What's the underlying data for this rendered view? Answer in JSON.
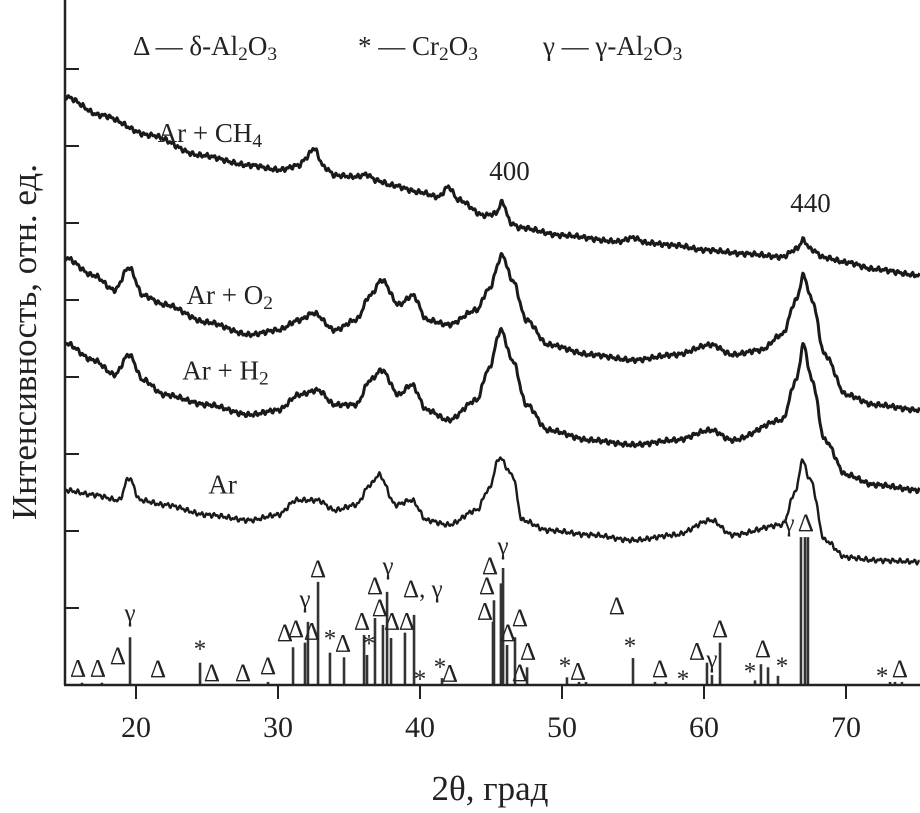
{
  "chart_data": {
    "type": "line",
    "title": "",
    "xlabel": "2θ, град",
    "ylabel": "Интенсивность, отн. ед.",
    "xlim": [
      15.0,
      75.2
    ],
    "ylim": [
      0,
      8.9
    ],
    "xticks": [
      20,
      30,
      40,
      50,
      60,
      70
    ],
    "yticks": [
      1,
      2,
      3,
      4,
      5,
      6,
      7,
      8
    ],
    "ytick_labels_shown": false,
    "grid": false,
    "line_color": "#1a1a1a",
    "legend": {
      "placement": "top",
      "items": [
        "Δ — δ-Al2O3",
        "* — Cr2O3",
        "γ — γ-Al2O3"
      ]
    },
    "series": [
      {
        "name": "Ar + CH4",
        "label_at": [
          25.2,
          7.05
        ],
        "points": [
          [
            15.0,
            7.64
          ],
          [
            17.5,
            7.4
          ],
          [
            21.0,
            7.14
          ],
          [
            24.5,
            6.88
          ],
          [
            28.0,
            6.75
          ],
          [
            30.1,
            6.69
          ],
          [
            31.5,
            6.75
          ],
          [
            32.0,
            6.85
          ],
          [
            32.5,
            6.97
          ],
          [
            33.3,
            6.72
          ],
          [
            34.0,
            6.62
          ],
          [
            35.5,
            6.6
          ],
          [
            36.2,
            6.63
          ],
          [
            37.0,
            6.55
          ],
          [
            38.0,
            6.49
          ],
          [
            40.0,
            6.4
          ],
          [
            41.3,
            6.34
          ],
          [
            42.0,
            6.47
          ],
          [
            42.7,
            6.3
          ],
          [
            44.5,
            6.1
          ],
          [
            45.3,
            6.12
          ],
          [
            45.8,
            6.27
          ],
          [
            46.4,
            6.0
          ],
          [
            47.0,
            5.94
          ],
          [
            50.0,
            5.84
          ],
          [
            54.0,
            5.76
          ],
          [
            55.0,
            5.81
          ],
          [
            56.0,
            5.74
          ],
          [
            58.0,
            5.71
          ],
          [
            60.0,
            5.65
          ],
          [
            63.0,
            5.6
          ],
          [
            65.5,
            5.56
          ],
          [
            66.5,
            5.66
          ],
          [
            67.0,
            5.78
          ],
          [
            67.5,
            5.66
          ],
          [
            68.5,
            5.55
          ],
          [
            70.0,
            5.49
          ],
          [
            72.0,
            5.4
          ],
          [
            75.2,
            5.32
          ]
        ]
      },
      {
        "name": "Ar + O2",
        "label_at": [
          26.6,
          4.95
        ],
        "points": [
          [
            15.0,
            5.55
          ],
          [
            17.0,
            5.32
          ],
          [
            18.5,
            5.13
          ],
          [
            19.5,
            5.42
          ],
          [
            20.5,
            5.06
          ],
          [
            22.0,
            4.94
          ],
          [
            25.0,
            4.71
          ],
          [
            28.0,
            4.55
          ],
          [
            30.0,
            4.61
          ],
          [
            31.5,
            4.74
          ],
          [
            32.5,
            4.83
          ],
          [
            34.0,
            4.61
          ],
          [
            35.5,
            4.74
          ],
          [
            36.5,
            5.06
          ],
          [
            37.3,
            5.26
          ],
          [
            38.5,
            4.94
          ],
          [
            39.5,
            5.06
          ],
          [
            40.5,
            4.74
          ],
          [
            42.0,
            4.68
          ],
          [
            44.0,
            4.87
          ],
          [
            44.8,
            5.13
          ],
          [
            45.8,
            5.58
          ],
          [
            46.5,
            5.26
          ],
          [
            47.5,
            4.74
          ],
          [
            49.0,
            4.42
          ],
          [
            52.0,
            4.29
          ],
          [
            55.0,
            4.22
          ],
          [
            58.0,
            4.29
          ],
          [
            60.5,
            4.42
          ],
          [
            62.0,
            4.29
          ],
          [
            64.0,
            4.35
          ],
          [
            65.5,
            4.55
          ],
          [
            66.5,
            5.0
          ],
          [
            67.0,
            5.32
          ],
          [
            67.6,
            5.0
          ],
          [
            68.5,
            4.29
          ],
          [
            70.0,
            3.77
          ],
          [
            72.0,
            3.64
          ],
          [
            75.2,
            3.57
          ]
        ]
      },
      {
        "name": "Ar + H2",
        "label_at": [
          26.3,
          3.97
        ],
        "points": [
          [
            15.0,
            4.44
          ],
          [
            17.0,
            4.22
          ],
          [
            18.5,
            4.03
          ],
          [
            19.5,
            4.29
          ],
          [
            20.5,
            3.96
          ],
          [
            22.0,
            3.77
          ],
          [
            25.0,
            3.64
          ],
          [
            28.0,
            3.51
          ],
          [
            30.0,
            3.57
          ],
          [
            31.5,
            3.77
          ],
          [
            32.8,
            3.83
          ],
          [
            34.0,
            3.64
          ],
          [
            35.5,
            3.64
          ],
          [
            36.5,
            3.96
          ],
          [
            37.3,
            4.09
          ],
          [
            38.5,
            3.77
          ],
          [
            39.4,
            3.9
          ],
          [
            40.5,
            3.57
          ],
          [
            42.0,
            3.44
          ],
          [
            44.0,
            3.7
          ],
          [
            44.8,
            4.09
          ],
          [
            45.7,
            4.61
          ],
          [
            46.5,
            4.22
          ],
          [
            47.5,
            3.64
          ],
          [
            49.0,
            3.31
          ],
          [
            52.0,
            3.18
          ],
          [
            55.0,
            3.12
          ],
          [
            58.0,
            3.18
          ],
          [
            60.5,
            3.31
          ],
          [
            62.0,
            3.18
          ],
          [
            65.5,
            3.44
          ],
          [
            66.5,
            3.96
          ],
          [
            67.0,
            4.42
          ],
          [
            67.6,
            3.96
          ],
          [
            68.5,
            3.18
          ],
          [
            70.0,
            2.73
          ],
          [
            72.0,
            2.6
          ],
          [
            75.2,
            2.53
          ]
        ]
      },
      {
        "name": "Ar",
        "label_at": [
          26.1,
          2.49
        ],
        "points": [
          [
            15.0,
            2.53
          ],
          [
            17.0,
            2.47
          ],
          [
            18.8,
            2.4
          ],
          [
            19.5,
            2.69
          ],
          [
            20.3,
            2.4
          ],
          [
            22.0,
            2.34
          ],
          [
            25.0,
            2.21
          ],
          [
            28.0,
            2.14
          ],
          [
            30.0,
            2.21
          ],
          [
            31.3,
            2.4
          ],
          [
            32.8,
            2.4
          ],
          [
            34.0,
            2.27
          ],
          [
            35.5,
            2.34
          ],
          [
            36.5,
            2.6
          ],
          [
            37.1,
            2.73
          ],
          [
            38.3,
            2.34
          ],
          [
            39.4,
            2.4
          ],
          [
            40.5,
            2.14
          ],
          [
            42.0,
            2.08
          ],
          [
            44.0,
            2.27
          ],
          [
            44.8,
            2.53
          ],
          [
            45.6,
            2.95
          ],
          [
            46.5,
            2.73
          ],
          [
            47.2,
            2.14
          ],
          [
            49.0,
            2.01
          ],
          [
            52.0,
            1.95
          ],
          [
            55.0,
            1.88
          ],
          [
            58.0,
            1.95
          ],
          [
            60.5,
            2.14
          ],
          [
            62.0,
            1.95
          ],
          [
            65.5,
            2.08
          ],
          [
            66.5,
            2.53
          ],
          [
            66.9,
            2.92
          ],
          [
            67.5,
            2.66
          ],
          [
            68.5,
            1.88
          ],
          [
            70.0,
            1.66
          ],
          [
            72.0,
            1.62
          ],
          [
            75.2,
            1.6
          ]
        ]
      }
    ],
    "annotations": [
      {
        "text": "400",
        "at": [
          46.3,
          6.56
        ]
      },
      {
        "text": "440",
        "at": [
          67.5,
          6.14
        ]
      }
    ],
    "reference_lines": [
      [
        16.2,
        0.03
      ],
      [
        17.6,
        0.03
      ],
      [
        19.58,
        0.62
      ],
      [
        24.51,
        0.29
      ],
      [
        29.3,
        0.04
      ],
      [
        31.06,
        0.49
      ],
      [
        31.9,
        0.55
      ],
      [
        32.11,
        0.82
      ],
      [
        32.82,
        1.34
      ],
      [
        33.66,
        0.42
      ],
      [
        34.65,
        0.36
      ],
      [
        36.06,
        0.65
      ],
      [
        36.27,
        0.39
      ],
      [
        36.83,
        0.87
      ],
      [
        37.39,
        0.78
      ],
      [
        37.68,
        1.21
      ],
      [
        37.96,
        0.61
      ],
      [
        38.94,
        0.68
      ],
      [
        39.58,
        0.91
      ],
      [
        41.55,
        0.09
      ],
      [
        45.14,
        0.82
      ],
      [
        45.21,
        1.1
      ],
      [
        45.7,
        1.32
      ],
      [
        45.85,
        1.52
      ],
      [
        46.13,
        0.52
      ],
      [
        46.69,
        0.62
      ],
      [
        47.54,
        0.23
      ],
      [
        50.35,
        0.1
      ],
      [
        51.2,
        0.04
      ],
      [
        51.69,
        0.04
      ],
      [
        55.0,
        0.35
      ],
      [
        56.55,
        0.04
      ],
      [
        57.32,
        0.04
      ],
      [
        60.21,
        0.29
      ],
      [
        60.56,
        0.13
      ],
      [
        61.13,
        0.55
      ],
      [
        63.59,
        0.06
      ],
      [
        64.01,
        0.27
      ],
      [
        64.51,
        0.23
      ],
      [
        65.21,
        0.12
      ],
      [
        66.83,
        1.92
      ],
      [
        67.11,
        1.92
      ],
      [
        67.32,
        1.92
      ],
      [
        73.1,
        0.04
      ],
      [
        73.45,
        0.04
      ],
      [
        73.94,
        0.04
      ]
    ],
    "phase_markers": [
      {
        "s": "Δ",
        "at": [
          15.92,
          0.23
        ]
      },
      {
        "s": "Δ",
        "at": [
          17.32,
          0.23
        ]
      },
      {
        "s": "Δ",
        "at": [
          18.73,
          0.39
        ]
      },
      {
        "s": "γ",
        "at": [
          19.58,
          0.95
        ]
      },
      {
        "s": "Δ",
        "at": [
          21.55,
          0.22
        ]
      },
      {
        "s": "*",
        "at": [
          24.51,
          0.48
        ]
      },
      {
        "s": "Δ",
        "at": [
          25.35,
          0.17
        ]
      },
      {
        "s": "Δ",
        "at": [
          27.54,
          0.17
        ]
      },
      {
        "s": "Δ",
        "at": [
          29.3,
          0.26
        ]
      },
      {
        "s": "Δ",
        "at": [
          30.49,
          0.69
        ]
      },
      {
        "s": "Δ",
        "at": [
          31.27,
          0.74
        ]
      },
      {
        "s": "γ",
        "at": [
          31.9,
          1.13
        ]
      },
      {
        "s": "Δ",
        "at": [
          32.39,
          0.71
        ]
      },
      {
        "s": "Δ",
        "at": [
          32.82,
          1.52
        ]
      },
      {
        "s": "*",
        "at": [
          33.66,
          0.62
        ]
      },
      {
        "s": "Δ",
        "at": [
          34.58,
          0.55
        ]
      },
      {
        "s": "Δ",
        "at": [
          35.92,
          0.84
        ]
      },
      {
        "s": "*",
        "at": [
          36.41,
          0.55
        ]
      },
      {
        "s": "Δ",
        "at": [
          36.83,
          1.3
        ]
      },
      {
        "s": "Δ",
        "at": [
          37.18,
          1.01
        ]
      },
      {
        "s": "γ",
        "at": [
          37.75,
          1.56
        ]
      },
      {
        "s": "Δ",
        "at": [
          38.03,
          0.84
        ]
      },
      {
        "s": "Δ, γ",
        "at": [
          40.2,
          1.26
        ]
      },
      {
        "s": "Δ",
        "at": [
          39.08,
          0.84
        ]
      },
      {
        "s": "*",
        "at": [
          40.0,
          0.09
        ]
      },
      {
        "s": "*",
        "at": [
          41.41,
          0.25
        ]
      },
      {
        "s": "Δ",
        "at": [
          42.11,
          0.16
        ]
      },
      {
        "s": "Δ",
        "at": [
          44.58,
          0.97
        ]
      },
      {
        "s": "Δ",
        "at": [
          44.72,
          1.3
        ]
      },
      {
        "s": "Δ",
        "at": [
          44.93,
          1.56
        ]
      },
      {
        "s": "γ",
        "at": [
          45.85,
          1.82
        ]
      },
      {
        "s": "Δ",
        "at": [
          46.2,
          0.69
        ]
      },
      {
        "s": "Δ",
        "at": [
          47.04,
          0.88
        ]
      },
      {
        "s": "Δ",
        "at": [
          47.61,
          0.45
        ]
      },
      {
        "s": "Δ",
        "at": [
          47.04,
          0.17
        ]
      },
      {
        "s": "*",
        "at": [
          50.21,
          0.26
        ]
      },
      {
        "s": "Δ",
        "at": [
          51.13,
          0.19
        ]
      },
      {
        "s": "Δ",
        "at": [
          53.87,
          1.04
        ]
      },
      {
        "s": "*",
        "at": [
          54.79,
          0.52
        ]
      },
      {
        "s": "Δ",
        "at": [
          56.9,
          0.22
        ]
      },
      {
        "s": "*",
        "at": [
          58.52,
          0.09
        ]
      },
      {
        "s": "Δ",
        "at": [
          59.51,
          0.45
        ]
      },
      {
        "s": "γ",
        "at": [
          60.56,
          0.35
        ]
      },
      {
        "s": "Δ",
        "at": [
          61.13,
          0.74
        ]
      },
      {
        "s": "*",
        "at": [
          63.24,
          0.19
        ]
      },
      {
        "s": "Δ",
        "at": [
          64.15,
          0.48
        ]
      },
      {
        "s": "*",
        "at": [
          65.49,
          0.26
        ]
      },
      {
        "s": "γ",
        "at": [
          65.99,
          2.12
        ]
      },
      {
        "s": "Δ",
        "at": [
          67.18,
          2.12
        ]
      },
      {
        "s": "*",
        "at": [
          72.54,
          0.13
        ]
      },
      {
        "s": "Δ",
        "at": [
          73.8,
          0.22
        ]
      }
    ]
  }
}
